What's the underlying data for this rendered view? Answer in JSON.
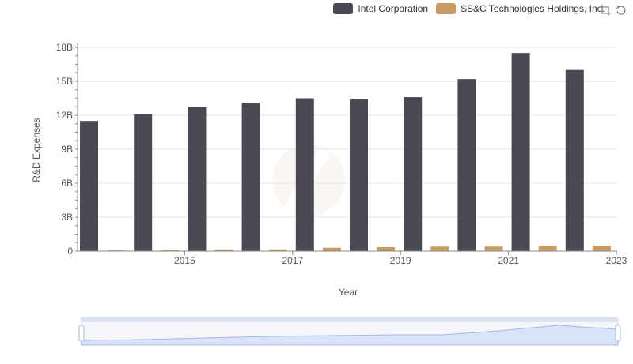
{
  "chart_data": {
    "type": "bar",
    "categories": [
      "2014",
      "2015",
      "2016",
      "2017",
      "2018",
      "2019",
      "2020",
      "2021",
      "2022",
      "2023"
    ],
    "x_tick_labels": [
      "2015",
      "2017",
      "2019",
      "2021",
      "2023"
    ],
    "series": [
      {
        "name": "Intel Corporation",
        "color": "#4a4953",
        "values": [
          11.5,
          12.1,
          12.7,
          13.1,
          13.5,
          13.4,
          13.6,
          15.2,
          17.5,
          16.0
        ]
      },
      {
        "name": "SS&C Technologies Holdings, Inc.",
        "color": "#c89a64",
        "values": [
          0.06,
          0.1,
          0.15,
          0.15,
          0.3,
          0.35,
          0.4,
          0.4,
          0.45,
          0.48
        ]
      }
    ],
    "xlabel": "Year",
    "ylabel": "R&D Expenses",
    "ylim": [
      0,
      18
    ],
    "y_ticks": [
      0,
      3,
      6,
      9,
      12,
      15,
      18
    ],
    "y_tick_labels": [
      "0",
      "3B",
      "6B",
      "9B",
      "12B",
      "15B",
      "18B"
    ],
    "grid": true,
    "legend_position": "top-right"
  },
  "toolbar": {
    "zoom_icon": "zoom-select-icon",
    "restore_icon": "zoom-restore-icon"
  }
}
